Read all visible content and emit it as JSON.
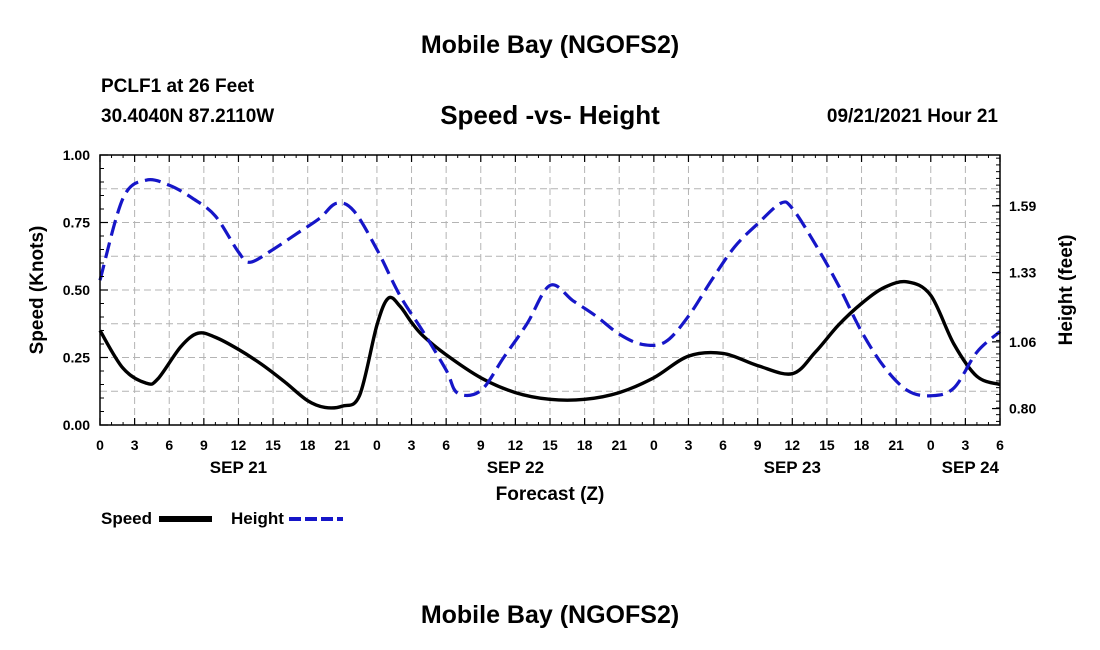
{
  "header": {
    "title": "Mobile Bay (NGOFS2)",
    "station": "PCLF1 at 26 Feet",
    "coords": "30.4040N  87.2110W",
    "subtitle": "Speed -vs- Height",
    "datetime": "09/21/2021 Hour 21"
  },
  "footer": {
    "title": "Mobile Bay (NGOFS2)"
  },
  "legend": {
    "speed_label": "Speed",
    "height_label": "Height"
  },
  "chart_data": {
    "type": "line",
    "title": "Speed -vs- Height",
    "xlabel": "Forecast (Z)",
    "ylabel": "Speed (Knots)",
    "y2label": "Height (feet)",
    "xlim": [
      0,
      78
    ],
    "ylim": [
      0,
      1.0
    ],
    "y2lim": [
      0.736,
      1.788
    ],
    "grid": true,
    "x_tick_values": [
      0,
      3,
      6,
      9,
      12,
      15,
      18,
      21,
      24,
      27,
      30,
      33,
      36,
      39,
      42,
      45,
      48,
      51,
      54,
      57,
      60,
      63,
      66,
      69,
      72,
      75,
      78
    ],
    "x_tick_labels": [
      "0",
      "3",
      "6",
      "9",
      "12",
      "15",
      "18",
      "21",
      "0",
      "3",
      "6",
      "9",
      "12",
      "15",
      "18",
      "21",
      "0",
      "3",
      "6",
      "9",
      "12",
      "15",
      "18",
      "21",
      "0",
      "3",
      "6"
    ],
    "day_labels": [
      {
        "label": "SEP 21",
        "x": 12
      },
      {
        "label": "SEP 22",
        "x": 36
      },
      {
        "label": "SEP 23",
        "x": 60
      },
      {
        "label": "SEP 24",
        "x": 78
      }
    ],
    "y_ticks": [
      0.0,
      0.25,
      0.5,
      0.75,
      1.0
    ],
    "y_tick_labels": [
      "0.00",
      "0.25",
      "0.50",
      "0.75",
      "1.00"
    ],
    "y2_ticks": [
      0.8,
      1.06,
      1.33,
      1.59
    ],
    "y2_tick_labels": [
      "0.80",
      "1.06",
      "1.33",
      "1.59"
    ],
    "series": [
      {
        "name": "Speed",
        "axis": "left",
        "color": "#000000",
        "style": "solid",
        "x": [
          0,
          2,
          4,
          5,
          7,
          8.5,
          10,
          12,
          14,
          16,
          18,
          19.5,
          21,
          22.5,
          24,
          25,
          26,
          27,
          28,
          30,
          33,
          36,
          39,
          42,
          45,
          48,
          51,
          54,
          57,
          60,
          62,
          64,
          66,
          68,
          70,
          72,
          74,
          76,
          78
        ],
        "y": [
          0.35,
          0.21,
          0.155,
          0.17,
          0.29,
          0.34,
          0.325,
          0.28,
          0.225,
          0.16,
          0.09,
          0.065,
          0.07,
          0.11,
          0.37,
          0.47,
          0.44,
          0.38,
          0.33,
          0.26,
          0.175,
          0.12,
          0.095,
          0.095,
          0.12,
          0.175,
          0.255,
          0.265,
          0.22,
          0.19,
          0.27,
          0.37,
          0.45,
          0.51,
          0.53,
          0.48,
          0.3,
          0.18,
          0.15
        ]
      },
      {
        "name": "Height",
        "axis": "right",
        "color": "#1616c8",
        "style": "dashed",
        "x": [
          0,
          2,
          4,
          6,
          8,
          10,
          12,
          13,
          15,
          17,
          19,
          20.5,
          22,
          24,
          26,
          28,
          30,
          31,
          33,
          35,
          37,
          39,
          41,
          43,
          45,
          47,
          49,
          51,
          53,
          55,
          57,
          59,
          60,
          62,
          64,
          66,
          68,
          70,
          72,
          74,
          76,
          78
        ],
        "y": [
          1.3,
          1.62,
          1.69,
          1.67,
          1.62,
          1.55,
          1.41,
          1.37,
          1.42,
          1.48,
          1.54,
          1.6,
          1.57,
          1.42,
          1.24,
          1.1,
          0.95,
          0.86,
          0.87,
          1.0,
          1.13,
          1.28,
          1.22,
          1.16,
          1.09,
          1.05,
          1.06,
          1.16,
          1.3,
          1.43,
          1.52,
          1.6,
          1.58,
          1.44,
          1.28,
          1.1,
          0.96,
          0.87,
          0.85,
          0.88,
          1.02,
          1.1
        ]
      }
    ]
  }
}
